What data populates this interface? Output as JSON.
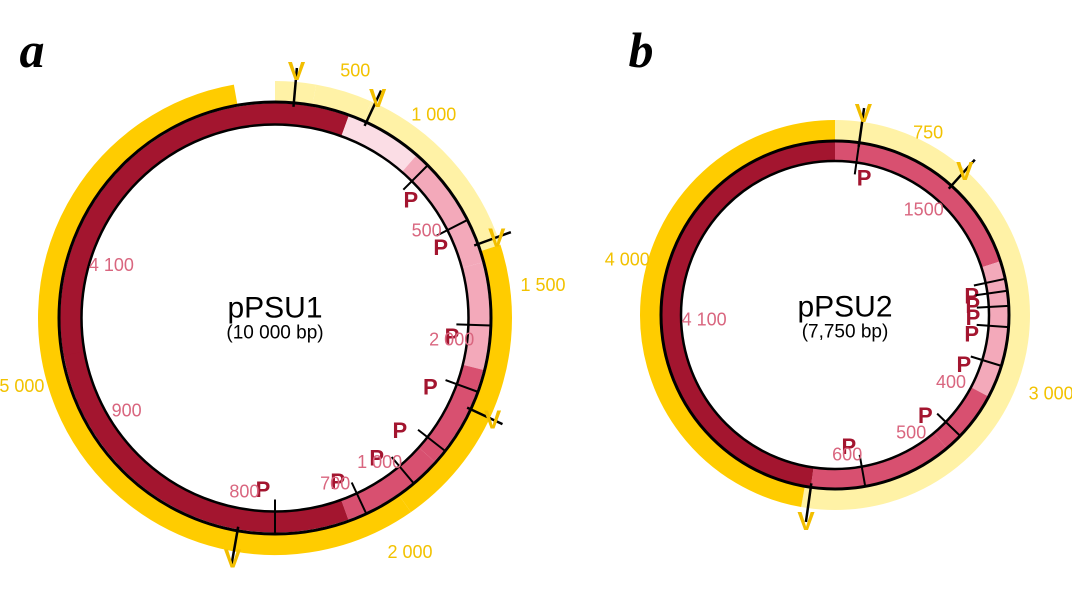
{
  "colors": {
    "outer_dark": "#FFCC00",
    "outer_light": "#FFF2A6",
    "inner_dark": "#A3152F",
    "inner_mid": "#D85070",
    "inner_light": "#F3A9BA",
    "inner_pale": "#FBDDE5",
    "backbone": "#000000",
    "v_label": "#F2BE00",
    "p_label": "#A3152F",
    "outer_text": "#F2C200",
    "inner_text": "#D9667F"
  },
  "panels": [
    {
      "id": "a",
      "letter": "a",
      "name": "pPSU1",
      "size_label": "(10 000 bp)",
      "outer_segments": [
        {
          "label": "500"
        },
        {
          "label": "1 000"
        },
        {
          "label": "1 500"
        },
        {
          "label": "2 000"
        },
        {
          "label": "5 000"
        }
      ],
      "inner_segments": [
        {
          "label": "500"
        },
        {
          "label": "2 000"
        },
        {
          "label": "1 000"
        },
        {
          "label": "700"
        },
        {
          "label": "800"
        },
        {
          "label": "900"
        },
        {
          "label": "4 100"
        }
      ],
      "v_sites": [
        "V",
        "V",
        "V",
        "V",
        "V"
      ],
      "p_sites": [
        "P",
        "P",
        "P",
        "P",
        "P",
        "P",
        "P",
        "P"
      ]
    },
    {
      "id": "b",
      "letter": "b",
      "name": "pPSU2",
      "size_label": "(7,750 bp)",
      "outer_segments": [
        {
          "label": "750"
        },
        {
          "label": "3 000"
        },
        {
          "label": "4 000"
        }
      ],
      "inner_segments": [
        {
          "label": "1500"
        },
        {
          "label": "400"
        },
        {
          "label": "500"
        },
        {
          "label": "600"
        },
        {
          "label": "4 100"
        }
      ],
      "v_sites": [
        "V",
        "V",
        "V"
      ],
      "p_sites": [
        "P",
        "P",
        "P",
        "P",
        "P",
        "P",
        "P",
        "P"
      ]
    }
  ]
}
